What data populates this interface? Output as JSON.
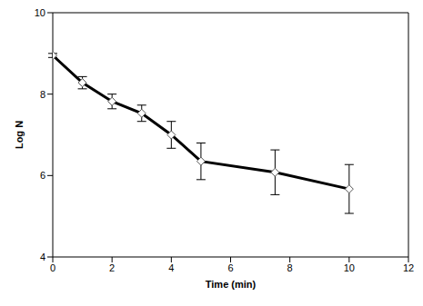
{
  "chart_data": {
    "type": "line",
    "x_label": "Time (min)",
    "y_label": "Log N",
    "x": [
      0,
      1,
      2,
      3,
      4,
      5,
      7.5,
      10
    ],
    "values": [
      8.95,
      8.28,
      7.82,
      7.53,
      7.0,
      6.35,
      6.08,
      5.67
    ],
    "errors": [
      0.05,
      0.15,
      0.18,
      0.2,
      0.33,
      0.45,
      0.55,
      0.6
    ],
    "color": "#000000",
    "marker": "diamond",
    "line_style": "solid",
    "xlim": [
      0,
      12
    ],
    "xticks": [
      0,
      2,
      4,
      6,
      8,
      10,
      12
    ],
    "ylim": [
      4,
      10
    ],
    "yticks": [
      4,
      6,
      8,
      10
    ],
    "grid": false
  }
}
